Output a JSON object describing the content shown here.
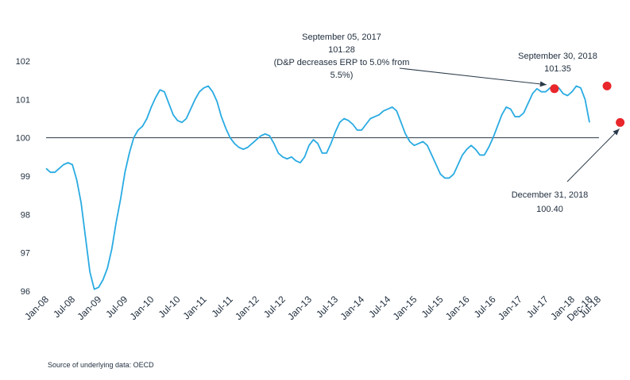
{
  "chart_data": {
    "type": "line",
    "title": "",
    "xlabel": "",
    "ylabel": "",
    "ylim": [
      96,
      102
    ],
    "yticks": [
      96,
      97,
      98,
      99,
      100,
      101,
      102
    ],
    "xticks": [
      "Jan-08",
      "Jul-08",
      "Jan-09",
      "Jul-09",
      "Jan-10",
      "Jul-10",
      "Jan-11",
      "Jul-11",
      "Jan-12",
      "Jul-12",
      "Jan-13",
      "Jul-13",
      "Jan-14",
      "Jul-14",
      "Jan-15",
      "Jul-15",
      "Jan-16",
      "Jul-16",
      "Jan-17",
      "Jul-17",
      "Jan-18",
      "Jul-18",
      "Dec-18"
    ],
    "x_start": "Jan-08",
    "x_end": "Dec-18",
    "reference_line": 100,
    "line_color": "#29abe2",
    "marker_color": "#e8262b",
    "grid": false,
    "series": [
      {
        "values": [
          99.2,
          99.1,
          99.1,
          99.2,
          99.3,
          99.35,
          99.3,
          98.9,
          98.3,
          97.4,
          96.5,
          96.05,
          96.1,
          96.3,
          96.6,
          97.1,
          97.8,
          98.4,
          99.1,
          99.6,
          100.0,
          100.2,
          100.3,
          100.5,
          100.8,
          101.05,
          101.25,
          101.2,
          100.9,
          100.6,
          100.45,
          100.4,
          100.5,
          100.75,
          101.0,
          101.2,
          101.3,
          101.35,
          101.2,
          100.95,
          100.55,
          100.25,
          100.0,
          99.85,
          99.75,
          99.7,
          99.75,
          99.85,
          99.95,
          100.05,
          100.1,
          100.05,
          99.85,
          99.6,
          99.5,
          99.45,
          99.5,
          99.4,
          99.35,
          99.5,
          99.8,
          99.95,
          99.85,
          99.6,
          99.6,
          99.85,
          100.15,
          100.4,
          100.5,
          100.45,
          100.35,
          100.2,
          100.2,
          100.35,
          100.5,
          100.55,
          100.6,
          100.7,
          100.75,
          100.8,
          100.7,
          100.4,
          100.1,
          99.9,
          99.8,
          99.85,
          99.9,
          99.8,
          99.55,
          99.3,
          99.05,
          98.95,
          98.95,
          99.05,
          99.3,
          99.55,
          99.7,
          99.8,
          99.7,
          99.55,
          99.55,
          99.75,
          100.0,
          100.3,
          100.6,
          100.8,
          100.75,
          100.55,
          100.55,
          100.65,
          100.9,
          101.15,
          101.28,
          101.2,
          101.2,
          101.3,
          101.35,
          101.3,
          101.15,
          101.1,
          101.2,
          101.35,
          101.3,
          101.0,
          100.4
        ]
      }
    ],
    "annotations": [
      {
        "lines": [
          "September 05, 2017",
          "101.28",
          "(D&P decreases ERP to 5.0% from",
          "5.5%)"
        ],
        "date": "September 05, 2017",
        "value": 101.28
      },
      {
        "lines": [
          "September 30, 2018",
          "101.35"
        ],
        "date": "September 30, 2018",
        "value": 101.35
      },
      {
        "lines": [
          "December 31, 2018",
          "100.40"
        ],
        "date": "December 31, 2018",
        "value": 100.4
      }
    ],
    "source": "Source of underlying data: OECD"
  }
}
